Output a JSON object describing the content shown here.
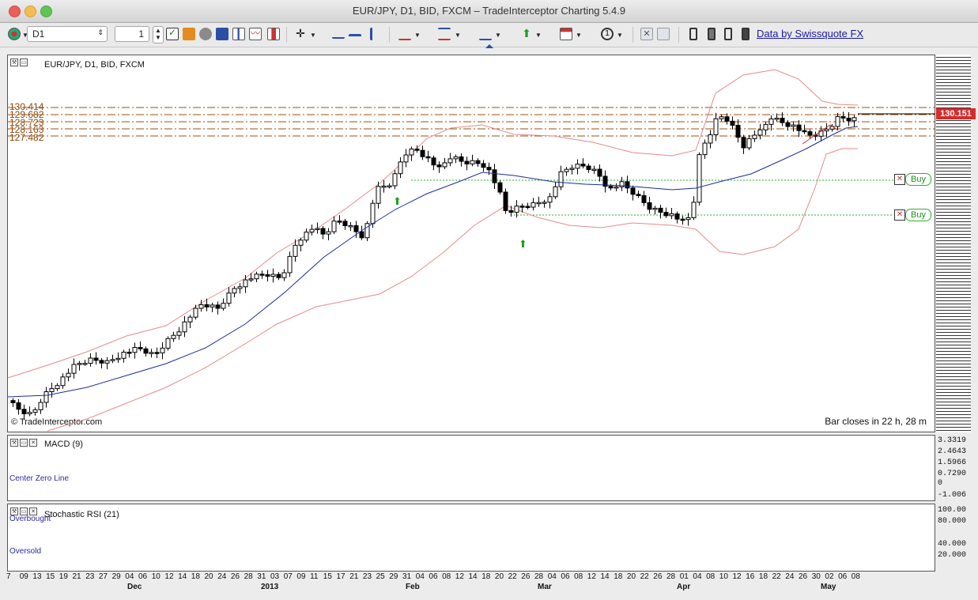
{
  "window": {
    "title": "EUR/JPY, D1, BID, FXCM – TradeInterceptor Charting 5.4.9"
  },
  "toolbar": {
    "timeframe": "D1",
    "count": "1",
    "data_link": "Data by Swissquote FX",
    "icons": [
      "app-icon",
      "check-icon",
      "pencil-icon",
      "gear-icon",
      "text-icon",
      "bar-chart-icon",
      "line-chart-icon",
      "candle-chart-icon",
      "crosshair-icon",
      "trendline-icon",
      "horizontal-line-icon",
      "vertical-line-icon",
      "channel-icon",
      "fibonacci-icon",
      "indicator-icon",
      "buy-arrow-icon",
      "template-icon",
      "clock-icon",
      "delete-icon",
      "edit-icon",
      "candle-single-icon",
      "candle-double-icon",
      "candle-triple-icon",
      "candle-full-icon"
    ]
  },
  "main_chart": {
    "label": "EUR/JPY, D1, BID, FXCM",
    "watermark": "© TradeInterceptor.com",
    "bar_close": "Bar closes in 22 h, 28 m",
    "current_price": "130.151",
    "price_levels": [
      "130.414",
      "129.682",
      "128.723",
      "128.163",
      "127.482"
    ],
    "order_labels": [
      "Buy",
      "Buy"
    ],
    "colors": {
      "upper_band": "#e58a8a",
      "moving_average": "#1c2c9e",
      "fib_lines": "#9b4f12",
      "order_line": "#2fae2f",
      "price_tag": "#d62b2b"
    }
  },
  "macd": {
    "label": "MACD (9)",
    "center_label": "Center Zero Line",
    "axis": [
      "3.3319",
      "2.4643",
      "1.5966",
      "0.7290",
      "0",
      "-1.006"
    ]
  },
  "stoch": {
    "label": "Stochastic RSI (21)",
    "overbought": "Overbought",
    "oversold": "Oversold",
    "axis": [
      "100.00",
      "80.000",
      "40.000",
      "20.000"
    ]
  },
  "date_axis": {
    "days": [
      "7",
      "09",
      "13",
      "15",
      "19",
      "21",
      "23",
      "27",
      "29",
      "04",
      "06",
      "10",
      "12",
      "14",
      "18",
      "20",
      "24",
      "26",
      "28",
      "31",
      "03",
      "07",
      "09",
      "11",
      "15",
      "17",
      "21",
      "23",
      "25",
      "29",
      "31",
      "04",
      "06",
      "08",
      "12",
      "14",
      "18",
      "20",
      "22",
      "26",
      "28",
      "04",
      "06",
      "08",
      "12",
      "14",
      "18",
      "20",
      "22",
      "26",
      "28",
      "01",
      "04",
      "08",
      "10",
      "12",
      "16",
      "18",
      "22",
      "24",
      "26",
      "30",
      "02",
      "06",
      "08"
    ],
    "months": [
      {
        "label": "Dec",
        "pos": 161
      },
      {
        "label": "2013",
        "pos": 330
      },
      {
        "label": "Feb",
        "pos": 513
      },
      {
        "label": "Mar",
        "pos": 680
      },
      {
        "label": "Apr",
        "pos": 856
      },
      {
        "label": "May",
        "pos": 1038
      }
    ]
  }
}
